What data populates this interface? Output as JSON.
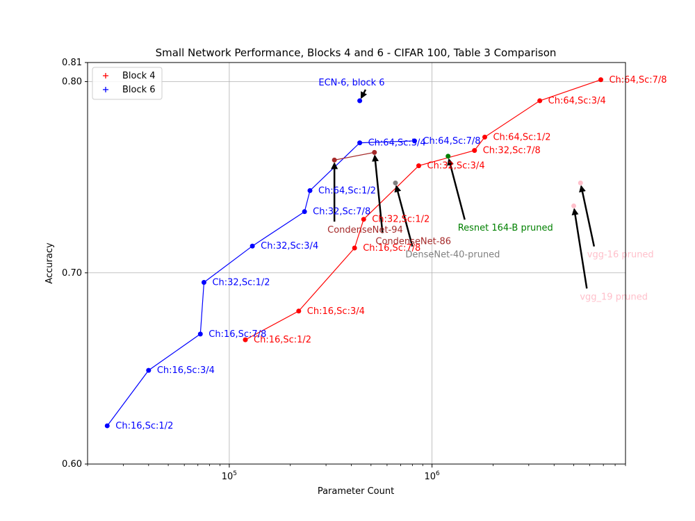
{
  "chart_data": {
    "type": "scatter",
    "title": "Small Network Performance, Blocks 4 and 6 - CIFAR 100, Table 3 Comparison",
    "xlabel": "Parameter Count",
    "ylabel": "Accuracy",
    "xscale": "log",
    "xlim": [
      20000,
      9000000
    ],
    "ylim": [
      0.6,
      0.81
    ],
    "yticks": [
      0.6,
      0.7,
      0.8,
      0.81
    ],
    "ytick_labels": [
      "0.60",
      "0.70",
      "0.80",
      "0.81"
    ],
    "xticks": [
      100000,
      1000000
    ],
    "xtick_labels": [
      {
        "base": "10",
        "exp": "5"
      },
      {
        "base": "10",
        "exp": "6"
      }
    ],
    "grid": true,
    "legend": {
      "location": "top-left",
      "entries": [
        {
          "label": "Block 4",
          "color": "#ff0000"
        },
        {
          "label": "Block 6",
          "color": "#0000ff"
        }
      ]
    },
    "series": [
      {
        "name": "Block 4",
        "color": "#ff0000",
        "points": [
          {
            "x": 120000,
            "y": 0.665,
            "label": "Ch:16,Sc:1/2"
          },
          {
            "x": 220000,
            "y": 0.68,
            "label": "Ch:16,Sc:3/4"
          },
          {
            "x": 415000,
            "y": 0.713,
            "label": "Ch:16,Sc:7/8"
          },
          {
            "x": 460000,
            "y": 0.728,
            "label": "Ch:32,Sc:1/2"
          },
          {
            "x": 860000,
            "y": 0.756,
            "label": "Ch:32,Sc:3/4"
          },
          {
            "x": 1620000,
            "y": 0.764,
            "label": "Ch:32,Sc:7/8"
          },
          {
            "x": 1820000,
            "y": 0.771,
            "label": "Ch:64,Sc:1/2"
          },
          {
            "x": 3400000,
            "y": 0.79,
            "label": "Ch:64,Sc:3/4"
          },
          {
            "x": 6800000,
            "y": 0.801,
            "label": "Ch:64,Sc:7/8"
          }
        ]
      },
      {
        "name": "Block 6",
        "color": "#0000ff",
        "points": [
          {
            "x": 25000,
            "y": 0.62,
            "label": "Ch:16,Sc:1/2"
          },
          {
            "x": 40000,
            "y": 0.649,
            "label": "Ch:16,Sc:3/4"
          },
          {
            "x": 72000,
            "y": 0.668,
            "label": "Ch:16,Sc:7/8"
          },
          {
            "x": 75000,
            "y": 0.695,
            "label": "Ch:32,Sc:1/2"
          },
          {
            "x": 130000,
            "y": 0.714,
            "label": "Ch:32,Sc:3/4"
          },
          {
            "x": 235000,
            "y": 0.732,
            "label": "Ch:32,Sc:7/8"
          },
          {
            "x": 250000,
            "y": 0.743,
            "label": "Ch:64,Sc:1/2"
          },
          {
            "x": 440000,
            "y": 0.768,
            "label": "Ch:64,Sc:3/4"
          },
          {
            "x": 820000,
            "y": 0.769,
            "label": "Ch:64,Sc:7/8"
          }
        ],
        "extra_points": [
          {
            "x": 440000,
            "y": 0.79,
            "label": "ECN-6, block 6"
          }
        ]
      }
    ],
    "comparisons": [
      {
        "label": "CondenseNet-94 / CondenseNet-86",
        "color": "#a52a2a",
        "label_color": "#a52a2a",
        "points": [
          {
            "x": 330000,
            "y": 0.759
          },
          {
            "x": 520000,
            "y": 0.763
          }
        ]
      },
      {
        "label": "DenseNet-40-pruned",
        "color": "#808080",
        "label_color": "#808080",
        "points": [
          {
            "x": 660000,
            "y": 0.747
          }
        ]
      },
      {
        "label": "Resnet 164-B pruned",
        "color": "#008000",
        "label_color": "#008000",
        "points": [
          {
            "x": 1200000,
            "y": 0.761
          }
        ]
      },
      {
        "label": "vgg-16 pruned",
        "color": "#ffc0cb",
        "label_color": "#ffc0cb",
        "points": [
          {
            "x": 5400000,
            "y": 0.747
          }
        ]
      },
      {
        "label": "vgg_19 pruned",
        "color": "#ffc0cb",
        "label_color": "#ffc0cb",
        "points": [
          {
            "x": 5000000,
            "y": 0.735
          }
        ]
      }
    ],
    "annotations": [
      {
        "text": "ECN-6, block 6",
        "color": "#0000ff",
        "target": {
          "x": 440000,
          "y": 0.79
        },
        "text_at": {
          "x": 470000,
          "y": 0.798
        }
      },
      {
        "text": "CondenseNet-94",
        "color": "#a52a2a",
        "target": {
          "x": 330000,
          "y": 0.759
        },
        "text_at": {
          "x": 330000,
          "y": 0.721
        }
      },
      {
        "text": "CondenseNet-86",
        "color": "#a52a2a",
        "target": {
          "x": 520000,
          "y": 0.763
        },
        "text_at": {
          "x": 570000,
          "y": 0.715
        }
      },
      {
        "text": "DenseNet-40-pruned",
        "color": "#808080",
        "target": {
          "x": 660000,
          "y": 0.747
        },
        "text_at": {
          "x": 800000,
          "y": 0.708
        }
      },
      {
        "text": "Resnet 164-B pruned",
        "color": "#008000",
        "target": {
          "x": 1200000,
          "y": 0.761
        },
        "text_at": {
          "x": 1450000,
          "y": 0.722
        }
      },
      {
        "text": "vgg-16 pruned",
        "color": "#ffc0cb",
        "target": {
          "x": 5400000,
          "y": 0.747
        },
        "text_at": {
          "x": 6300000,
          "y": 0.708
        }
      },
      {
        "text": "vgg_19 pruned",
        "color": "#ffc0cb",
        "target": {
          "x": 5000000,
          "y": 0.735
        },
        "text_at": {
          "x": 5800000,
          "y": 0.686
        }
      }
    ]
  }
}
